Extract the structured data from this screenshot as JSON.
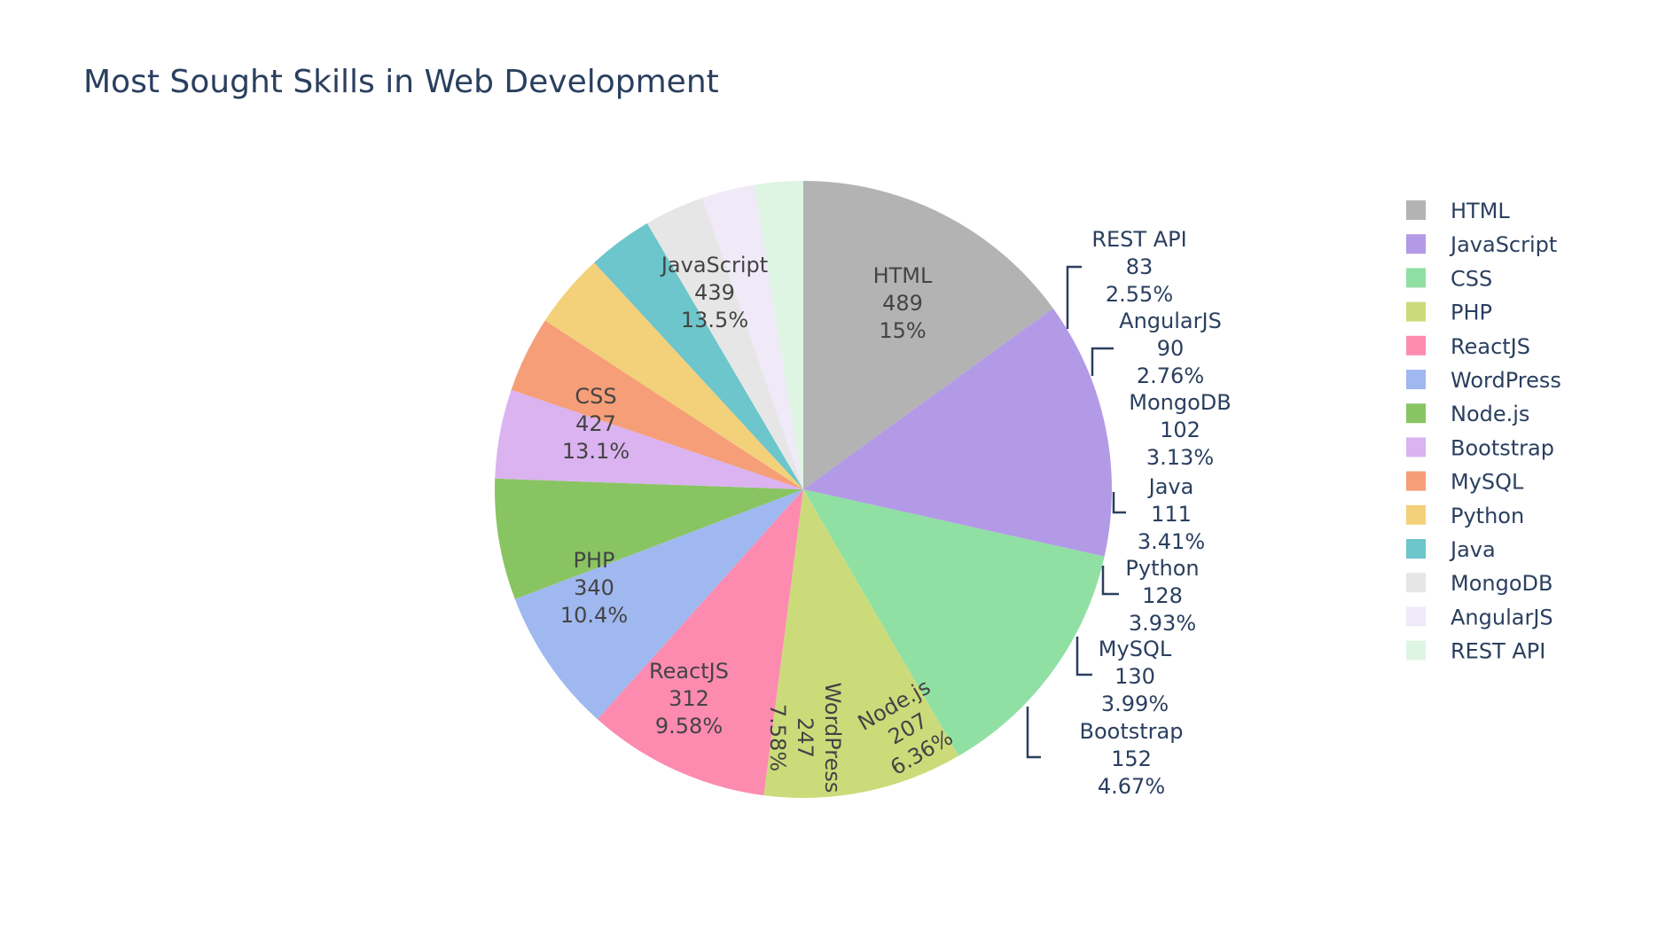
{
  "chart_data": {
    "type": "pie",
    "title": "Most Sought Skills in Web Development",
    "categories": [
      "HTML",
      "JavaScript",
      "CSS",
      "PHP",
      "ReactJS",
      "WordPress",
      "Node.js",
      "Bootstrap",
      "MySQL",
      "Python",
      "Java",
      "MongoDB",
      "AngularJS",
      "REST API"
    ],
    "values": [
      489,
      439,
      427,
      340,
      312,
      247,
      207,
      152,
      130,
      128,
      111,
      102,
      90,
      83
    ],
    "percent_labels": [
      "15%",
      "13.5%",
      "13.1%",
      "10.4%",
      "9.58%",
      "7.58%",
      "6.36%",
      "4.67%",
      "3.99%",
      "3.93%",
      "3.41%",
      "3.13%",
      "2.76%",
      "2.55%"
    ],
    "colors": [
      "#b3b3b3",
      "#b39ae6",
      "#90e0a3",
      "#ccdb7a",
      "#fd8bb0",
      "#a0b8f0",
      "#89c462",
      "#dab3f0",
      "#f59e78",
      "#f3d07a",
      "#6cc6cb",
      "#e6e6e6",
      "#efe9f8",
      "#dff5e4"
    ],
    "legend": {
      "entries": [
        "HTML",
        "JavaScript",
        "CSS",
        "PHP",
        "ReactJS",
        "WordPress",
        "Node.js",
        "Bootstrap",
        "MySQL",
        "Python",
        "Java",
        "MongoDB",
        "AngularJS",
        "REST API"
      ],
      "position": "right"
    },
    "text_color": "#2a3f5f",
    "inside_text_color": "#444444",
    "sort": "descending",
    "direction": "clockwise",
    "start_angle": "top"
  }
}
